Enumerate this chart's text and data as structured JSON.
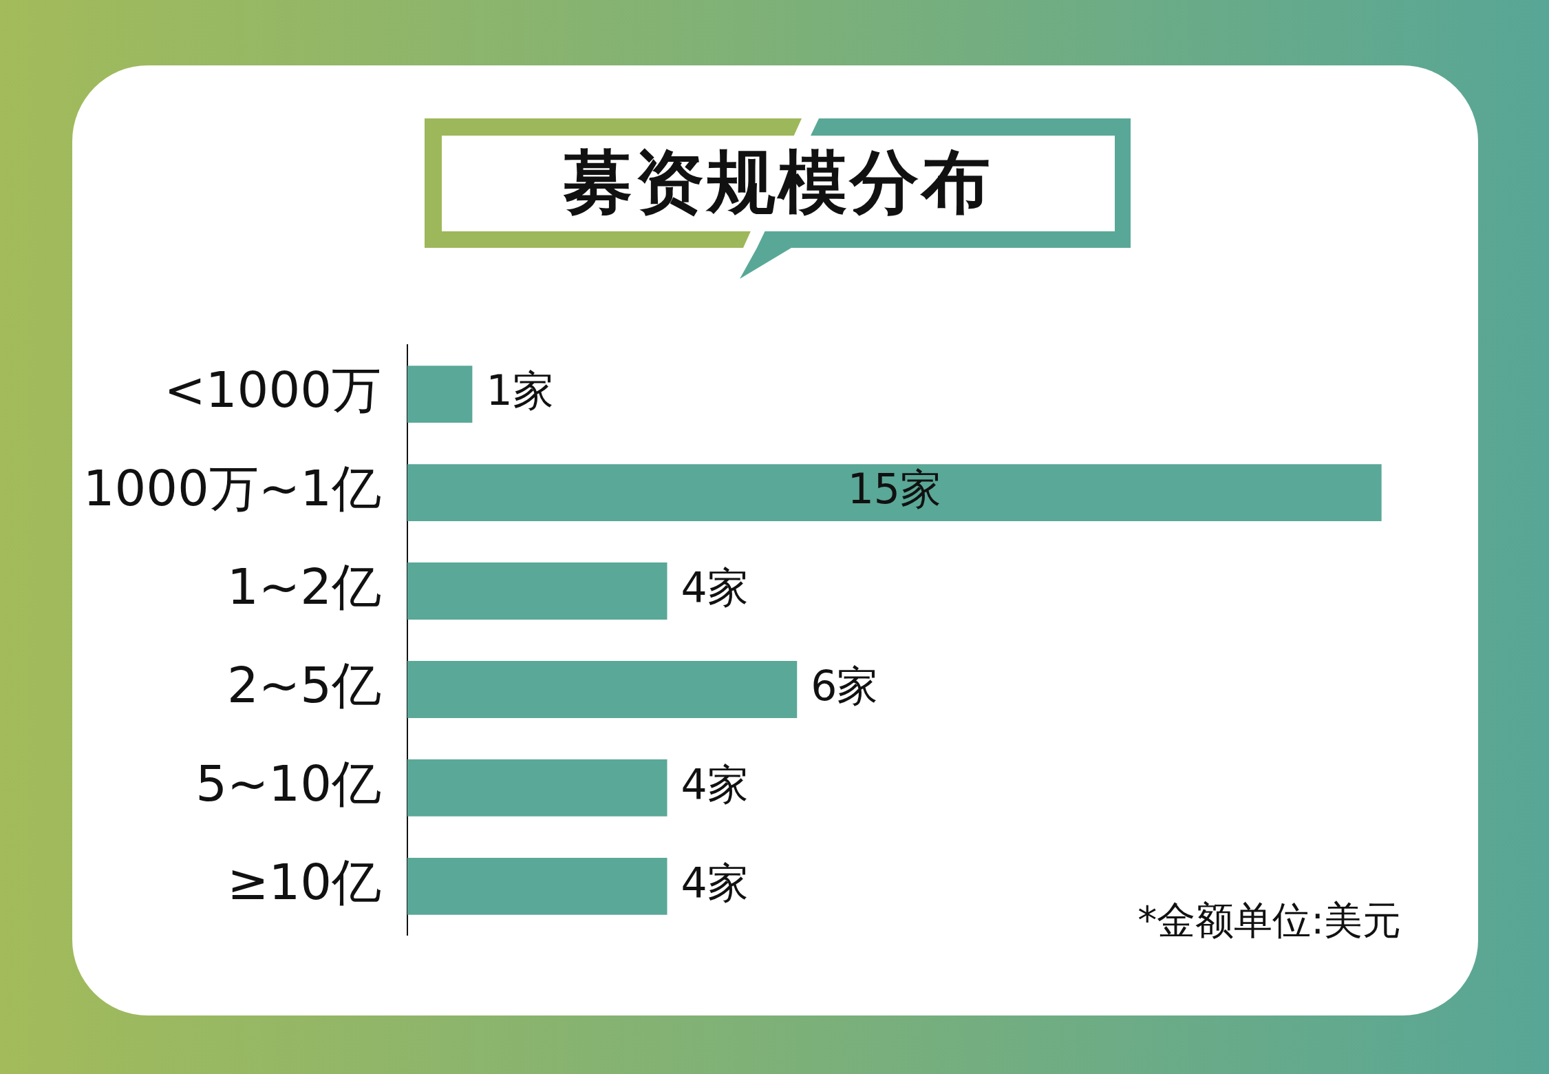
{
  "chart_data": {
    "type": "bar",
    "orientation": "horizontal",
    "title": "募资规模分布",
    "categories": [
      "<1000万",
      "1000万~1亿",
      "1~2亿",
      "2~5亿",
      "5~10亿",
      "≥10亿"
    ],
    "values": [
      1,
      15,
      4,
      6,
      4,
      4
    ],
    "value_labels": [
      "1家",
      "15家",
      "4家",
      "6家",
      "4家",
      "4家"
    ],
    "color": "#5aa897",
    "grid": false,
    "legend": false,
    "annotations": [
      "*金额单位:美元"
    ]
  }
}
